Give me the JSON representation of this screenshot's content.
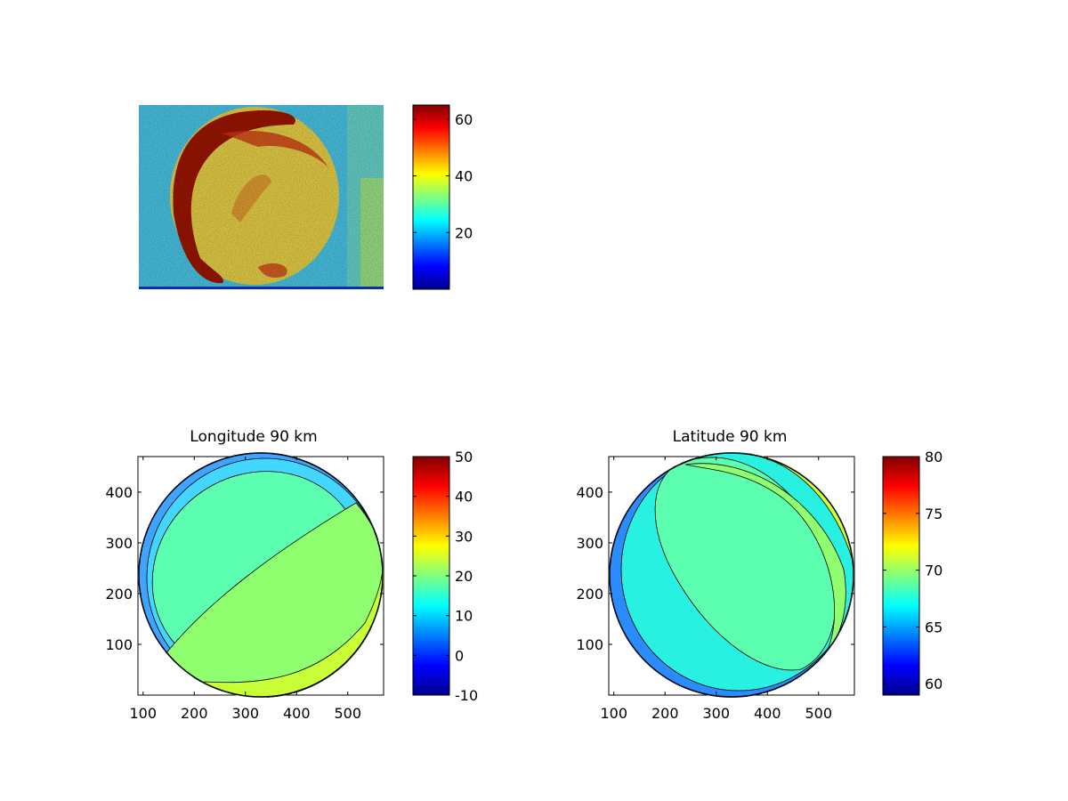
{
  "chart_data": [
    {
      "type": "heatmap",
      "title": "",
      "xlabel": "",
      "ylabel": "",
      "colormap": "jet",
      "colorbar": {
        "ticks": [
          20,
          40,
          60
        ],
        "range": [
          0,
          65
        ]
      },
      "axes_visible": false
    },
    {
      "type": "heatmap",
      "title": "Longitude 90 km",
      "xlabel": "",
      "ylabel": "",
      "xlim": [
        90,
        570
      ],
      "ylim": [
        0,
        470
      ],
      "x_ticks": [
        100,
        200,
        300,
        400,
        500
      ],
      "y_ticks": [
        100,
        200,
        300,
        400
      ],
      "colormap": "jet",
      "colorbar": {
        "ticks": [
          -10,
          0,
          10,
          20,
          30,
          40,
          50
        ],
        "range": [
          -10,
          50
        ]
      },
      "contour_bands": [
        {
          "level": 10,
          "color": "#3fa4ff"
        },
        {
          "level": 12,
          "color": "#43d6ff"
        },
        {
          "level": 18,
          "color": "#5cffb0"
        },
        {
          "level": 22,
          "color": "#8fff6f"
        },
        {
          "level": 26,
          "color": "#c8ff37"
        },
        {
          "level": 30,
          "color": "#ffd800"
        }
      ]
    },
    {
      "type": "heatmap",
      "title": "Latitude 90 km",
      "xlabel": "",
      "ylabel": "",
      "xlim": [
        90,
        570
      ],
      "ylim": [
        0,
        470
      ],
      "x_ticks": [
        100,
        200,
        300,
        400,
        500
      ],
      "y_ticks": [
        100,
        200,
        300,
        400
      ],
      "colormap": "jet",
      "colorbar": {
        "ticks": [
          60,
          65,
          70,
          75,
          80
        ],
        "range": [
          59,
          80
        ]
      },
      "contour_bands": [
        {
          "level": 64,
          "color": "#2b8cff"
        },
        {
          "level": 66,
          "color": "#28f1e2"
        },
        {
          "level": 68,
          "color": "#5cffb0"
        },
        {
          "level": 70,
          "color": "#8fff6f"
        },
        {
          "level": 72,
          "color": "#d6ff3a"
        }
      ]
    }
  ]
}
